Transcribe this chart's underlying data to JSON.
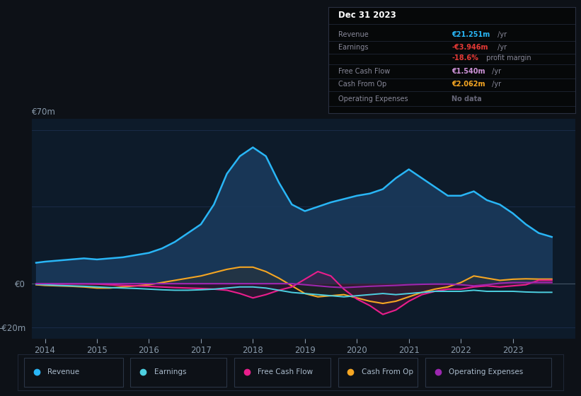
{
  "bg_color": "#0d1117",
  "plot_bg_color": "#0d1b2a",
  "grid_color": "#1e3050",
  "text_color": "#8899aa",
  "title_color": "#ffffff",
  "years": [
    2013.83,
    2014.0,
    2014.25,
    2014.5,
    2014.75,
    2015.0,
    2015.25,
    2015.5,
    2015.75,
    2016.0,
    2016.25,
    2016.5,
    2016.75,
    2017.0,
    2017.25,
    2017.5,
    2017.75,
    2018.0,
    2018.25,
    2018.5,
    2018.75,
    2019.0,
    2019.25,
    2019.5,
    2019.75,
    2020.0,
    2020.25,
    2020.5,
    2020.75,
    2021.0,
    2021.25,
    2021.5,
    2021.75,
    2022.0,
    2022.25,
    2022.5,
    2022.75,
    2023.0,
    2023.25,
    2023.5,
    2023.75,
    2024.0
  ],
  "revenue": [
    9.5,
    10.0,
    10.5,
    11.0,
    11.5,
    11.0,
    11.5,
    12.0,
    13.0,
    14.0,
    16.0,
    19.0,
    23.0,
    27.0,
    36.0,
    50.0,
    58.0,
    62.0,
    58.0,
    46.0,
    36.0,
    33.0,
    35.0,
    37.0,
    38.5,
    40.0,
    41.0,
    43.0,
    48.0,
    52.0,
    48.0,
    44.0,
    40.0,
    40.0,
    42.0,
    38.0,
    36.0,
    32.0,
    27.0,
    23.0,
    21.25,
    null
  ],
  "earnings": [
    -0.3,
    -0.5,
    -0.8,
    -1.0,
    -1.2,
    -1.5,
    -1.8,
    -2.0,
    -2.2,
    -2.5,
    -2.8,
    -3.0,
    -3.0,
    -2.8,
    -2.5,
    -2.0,
    -1.5,
    -1.5,
    -2.0,
    -3.0,
    -4.0,
    -4.5,
    -5.0,
    -5.5,
    -6.0,
    -5.5,
    -5.0,
    -4.5,
    -5.0,
    -4.5,
    -4.0,
    -3.5,
    -3.5,
    -3.5,
    -3.0,
    -3.5,
    -3.5,
    -3.5,
    -3.8,
    -3.946,
    -3.946,
    null
  ],
  "free_cash_flow": [
    -0.3,
    -0.3,
    -0.2,
    -0.1,
    -0.1,
    -0.2,
    -0.5,
    -0.8,
    -1.0,
    -1.2,
    -1.5,
    -1.8,
    -2.0,
    -2.2,
    -2.5,
    -3.0,
    -4.5,
    -6.5,
    -5.0,
    -3.0,
    -1.5,
    2.0,
    5.5,
    3.5,
    -2.5,
    -7.0,
    -10.0,
    -14.0,
    -12.0,
    -8.0,
    -5.0,
    -3.5,
    -2.5,
    -2.5,
    -1.5,
    -1.0,
    -1.5,
    -1.0,
    -0.5,
    1.54,
    1.54,
    null
  ],
  "cash_from_op": [
    -0.5,
    -0.8,
    -1.0,
    -1.2,
    -1.5,
    -2.0,
    -2.0,
    -1.5,
    -1.0,
    -0.5,
    0.5,
    1.5,
    2.5,
    3.5,
    5.0,
    6.5,
    7.5,
    7.5,
    5.5,
    2.5,
    -1.0,
    -4.5,
    -6.0,
    -5.5,
    -5.0,
    -6.5,
    -8.0,
    -9.0,
    -8.0,
    -6.0,
    -4.0,
    -2.5,
    -1.5,
    0.5,
    3.5,
    2.5,
    1.5,
    2.0,
    2.2,
    2.062,
    2.062,
    null
  ],
  "operating_expenses": [
    0.0,
    0.0,
    0.0,
    0.0,
    0.0,
    0.0,
    0.0,
    0.0,
    0.0,
    0.0,
    0.0,
    0.0,
    0.0,
    0.0,
    0.0,
    0.0,
    0.0,
    0.0,
    0.0,
    0.0,
    0.0,
    -0.5,
    -1.0,
    -1.5,
    -1.8,
    -1.5,
    -1.2,
    -1.0,
    -0.8,
    -0.5,
    -0.3,
    -0.2,
    -0.2,
    -0.5,
    -1.0,
    -0.5,
    0.2,
    0.5,
    0.5,
    0.5,
    0.5,
    null
  ],
  "revenue_color": "#29b6f6",
  "revenue_fill": "#1a3a5c",
  "earnings_color": "#4dd0e1",
  "free_cash_flow_color": "#e91e8c",
  "cash_from_op_color": "#f5a623",
  "operating_expenses_color": "#9c27b0",
  "ylim": [
    -25,
    75
  ],
  "xlim": [
    2013.75,
    2024.2
  ],
  "xticks": [
    2014,
    2015,
    2016,
    2017,
    2018,
    2019,
    2020,
    2021,
    2022,
    2023
  ],
  "legend_items": [
    {
      "label": "Revenue",
      "color": "#29b6f6"
    },
    {
      "label": "Earnings",
      "color": "#4dd0e1"
    },
    {
      "label": "Free Cash Flow",
      "color": "#e91e8c"
    },
    {
      "label": "Cash From Op",
      "color": "#f5a623"
    },
    {
      "label": "Operating Expenses",
      "color": "#9c27b0"
    }
  ]
}
